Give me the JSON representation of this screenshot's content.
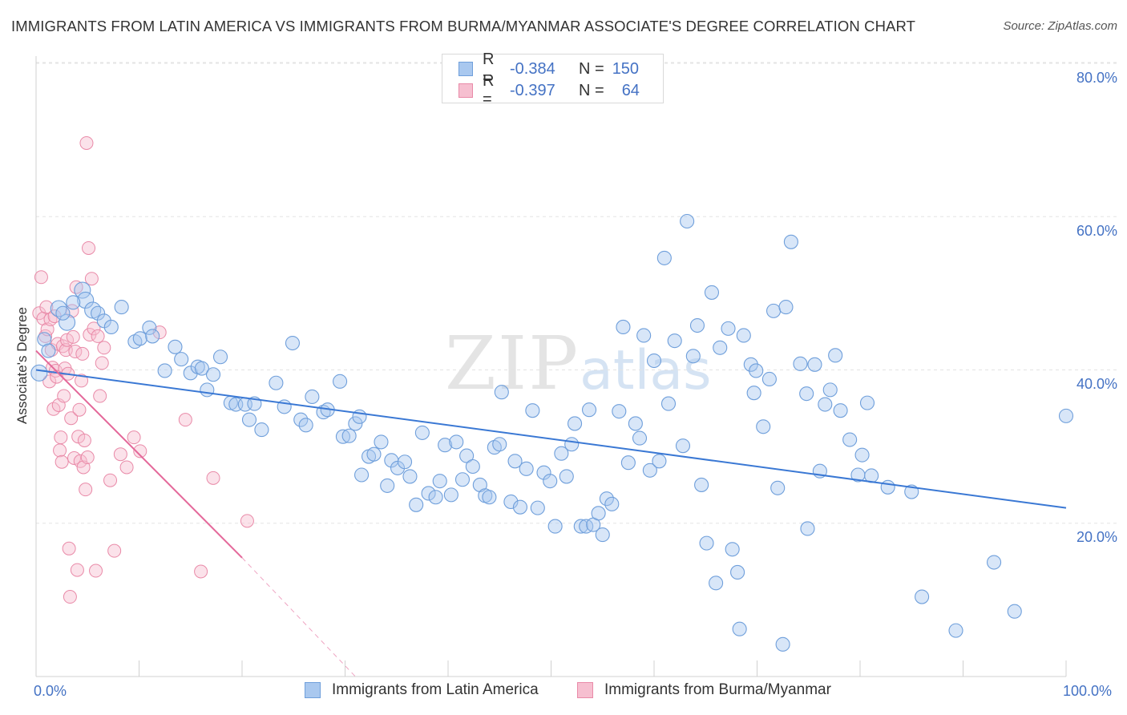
{
  "title": "IMMIGRANTS FROM LATIN AMERICA VS IMMIGRANTS FROM BURMA/MYANMAR ASSOCIATE'S DEGREE CORRELATION CHART",
  "source": "Source: ZipAtlas.com",
  "watermark": {
    "zip": "ZIP",
    "atlas": "atlas"
  },
  "legend": {
    "rows": [
      {
        "r_label": "R =",
        "r_value": "-0.384",
        "n_label": "N =",
        "n_value": "150"
      },
      {
        "r_label": "R =",
        "r_value": "-0.397",
        "n_label": "N =",
        "n_value": "64"
      }
    ]
  },
  "bottom_legend": {
    "series1": "Immigrants from Latin America",
    "series2": "Immigrants from Burma/Myanmar"
  },
  "axes": {
    "ylabel": "Associate's Degree",
    "x_min_label": "0.0%",
    "x_max_label": "100.0%",
    "y_ticks": [
      "20.0%",
      "40.0%",
      "60.0%",
      "80.0%"
    ]
  },
  "colors": {
    "blue_fill": "#a9c8ef",
    "blue_stroke": "#6f9fdb",
    "blue_line": "#3a78d4",
    "pink_fill": "#f6bfd0",
    "pink_stroke": "#e98aa8",
    "pink_line": "#e4689a",
    "grid": "#e3e3e3",
    "tick_text": "#4472c4"
  },
  "chart_data": {
    "type": "scatter",
    "title": "IMMIGRANTS FROM LATIN AMERICA VS IMMIGRANTS FROM BURMA/MYANMAR ASSOCIATE'S DEGREE CORRELATION CHART",
    "xlabel": "",
    "ylabel": "Associate's Degree",
    "xlim": [
      0,
      100
    ],
    "ylim": [
      0,
      82
    ],
    "y_ticks": [
      20,
      40,
      60,
      80
    ],
    "grid": true,
    "legend_placement": "top-center",
    "series": [
      {
        "name": "Immigrants from Latin America",
        "r": -0.384,
        "n": 150,
        "trend": {
          "x": [
            0,
            100
          ],
          "y": [
            40.0,
            22.0
          ]
        },
        "points": [
          [
            0.3,
            39.6
          ],
          [
            2.2,
            48.0
          ],
          [
            4.5,
            50.4
          ],
          [
            3.0,
            46.2
          ],
          [
            4.8,
            49.1
          ],
          [
            5.5,
            47.8
          ],
          [
            6.0,
            47.4
          ],
          [
            6.6,
            46.4
          ],
          [
            7.3,
            45.6
          ],
          [
            8.3,
            48.2
          ],
          [
            9.6,
            43.7
          ],
          [
            10.1,
            44.1
          ],
          [
            11.0,
            45.5
          ],
          [
            11.3,
            44.4
          ],
          [
            12.5,
            39.9
          ],
          [
            13.5,
            43.0
          ],
          [
            14.1,
            41.4
          ],
          [
            15.0,
            39.6
          ],
          [
            15.7,
            40.4
          ],
          [
            16.1,
            40.2
          ],
          [
            16.6,
            37.4
          ],
          [
            17.2,
            39.4
          ],
          [
            17.9,
            41.7
          ],
          [
            18.9,
            35.7
          ],
          [
            19.4,
            35.5
          ],
          [
            20.3,
            35.5
          ],
          [
            20.7,
            33.5
          ],
          [
            21.2,
            35.6
          ],
          [
            21.9,
            32.2
          ],
          [
            23.3,
            38.3
          ],
          [
            24.1,
            35.2
          ],
          [
            24.9,
            43.5
          ],
          [
            25.7,
            33.5
          ],
          [
            26.2,
            32.8
          ],
          [
            26.8,
            36.5
          ],
          [
            27.9,
            34.5
          ],
          [
            28.3,
            34.8
          ],
          [
            29.5,
            38.5
          ],
          [
            29.8,
            31.3
          ],
          [
            30.4,
            31.4
          ],
          [
            31.0,
            33.0
          ],
          [
            31.4,
            33.9
          ],
          [
            31.6,
            26.3
          ],
          [
            32.3,
            28.7
          ],
          [
            32.8,
            29.0
          ],
          [
            33.5,
            30.6
          ],
          [
            34.1,
            24.9
          ],
          [
            34.5,
            28.2
          ],
          [
            35.1,
            27.2
          ],
          [
            35.8,
            28.0
          ],
          [
            36.3,
            26.1
          ],
          [
            36.9,
            22.4
          ],
          [
            37.5,
            31.8
          ],
          [
            38.1,
            23.9
          ],
          [
            38.8,
            23.4
          ],
          [
            39.2,
            25.5
          ],
          [
            39.7,
            30.2
          ],
          [
            40.3,
            23.7
          ],
          [
            40.8,
            30.6
          ],
          [
            41.4,
            25.7
          ],
          [
            41.8,
            28.8
          ],
          [
            42.4,
            27.4
          ],
          [
            43.1,
            25.0
          ],
          [
            43.6,
            23.6
          ],
          [
            44.0,
            23.4
          ],
          [
            44.5,
            29.9
          ],
          [
            45.0,
            30.3
          ],
          [
            45.2,
            37.1
          ],
          [
            46.1,
            22.8
          ],
          [
            46.5,
            28.1
          ],
          [
            47.0,
            22.1
          ],
          [
            47.6,
            27.1
          ],
          [
            48.2,
            34.7
          ],
          [
            48.7,
            22.0
          ],
          [
            49.3,
            26.6
          ],
          [
            49.9,
            25.5
          ],
          [
            50.4,
            19.6
          ],
          [
            51.0,
            29.1
          ],
          [
            51.5,
            26.1
          ],
          [
            52.0,
            30.3
          ],
          [
            52.3,
            33.0
          ],
          [
            52.9,
            19.6
          ],
          [
            53.4,
            19.6
          ],
          [
            53.7,
            34.8
          ],
          [
            54.1,
            19.8
          ],
          [
            54.6,
            21.3
          ],
          [
            55.0,
            18.5
          ],
          [
            55.4,
            23.2
          ],
          [
            55.9,
            22.5
          ],
          [
            56.6,
            34.6
          ],
          [
            57.0,
            45.6
          ],
          [
            57.5,
            27.9
          ],
          [
            58.2,
            33.0
          ],
          [
            58.6,
            31.1
          ],
          [
            59.0,
            44.5
          ],
          [
            59.6,
            26.9
          ],
          [
            60.0,
            41.2
          ],
          [
            60.5,
            28.1
          ],
          [
            61.0,
            54.6
          ],
          [
            61.4,
            35.6
          ],
          [
            62.0,
            43.8
          ],
          [
            62.8,
            30.1
          ],
          [
            63.2,
            59.4
          ],
          [
            63.8,
            41.8
          ],
          [
            64.2,
            45.8
          ],
          [
            64.6,
            25.0
          ],
          [
            65.1,
            17.4
          ],
          [
            65.6,
            50.1
          ],
          [
            66.0,
            12.2
          ],
          [
            66.4,
            42.9
          ],
          [
            67.2,
            45.4
          ],
          [
            67.6,
            16.6
          ],
          [
            68.1,
            13.6
          ],
          [
            68.3,
            6.2
          ],
          [
            68.7,
            44.5
          ],
          [
            69.4,
            40.7
          ],
          [
            69.7,
            37.0
          ],
          [
            69.9,
            39.9
          ],
          [
            70.6,
            32.6
          ],
          [
            71.2,
            38.8
          ],
          [
            71.6,
            47.7
          ],
          [
            72.0,
            24.6
          ],
          [
            72.5,
            4.2
          ],
          [
            72.8,
            48.2
          ],
          [
            73.3,
            56.7
          ],
          [
            74.2,
            40.8
          ],
          [
            74.8,
            36.9
          ],
          [
            74.9,
            19.3
          ],
          [
            75.6,
            40.7
          ],
          [
            76.1,
            26.8
          ],
          [
            76.6,
            35.5
          ],
          [
            77.1,
            37.4
          ],
          [
            77.6,
            41.9
          ],
          [
            78.1,
            34.7
          ],
          [
            79.0,
            30.9
          ],
          [
            79.8,
            26.3
          ],
          [
            80.2,
            28.9
          ],
          [
            80.7,
            35.7
          ],
          [
            81.1,
            26.2
          ],
          [
            82.7,
            24.7
          ],
          [
            85.0,
            24.1
          ],
          [
            86.0,
            10.4
          ],
          [
            89.3,
            6.0
          ],
          [
            93.0,
            14.9
          ],
          [
            95.0,
            8.5
          ],
          [
            100.0,
            34.0
          ],
          [
            0.8,
            44.0
          ],
          [
            1.2,
            42.5
          ],
          [
            2.6,
            47.4
          ],
          [
            3.6,
            48.8
          ]
        ]
      },
      {
        "name": "Immigrants from Burma/Myanmar",
        "r": -0.397,
        "n": 64,
        "trend": {
          "x": [
            0,
            20
          ],
          "y": [
            42.5,
            15.5
          ]
        },
        "trend_extension": {
          "x": [
            20,
            31
          ],
          "y": [
            15.5,
            0
          ]
        },
        "points": [
          [
            0.3,
            47.4
          ],
          [
            0.5,
            52.1
          ],
          [
            0.7,
            46.7
          ],
          [
            0.9,
            44.4
          ],
          [
            1.0,
            48.2
          ],
          [
            1.1,
            45.3
          ],
          [
            1.3,
            38.5
          ],
          [
            1.4,
            46.6
          ],
          [
            1.5,
            42.6
          ],
          [
            1.6,
            40.3
          ],
          [
            1.7,
            34.9
          ],
          [
            1.8,
            47.0
          ],
          [
            1.9,
            39.9
          ],
          [
            2.0,
            39.1
          ],
          [
            2.1,
            43.4
          ],
          [
            2.2,
            35.4
          ],
          [
            2.3,
            29.5
          ],
          [
            2.4,
            31.2
          ],
          [
            2.5,
            28.0
          ],
          [
            2.6,
            43.1
          ],
          [
            2.7,
            36.6
          ],
          [
            2.8,
            40.2
          ],
          [
            2.9,
            42.6
          ],
          [
            3.0,
            43.9
          ],
          [
            3.1,
            39.5
          ],
          [
            3.2,
            16.7
          ],
          [
            3.3,
            10.4
          ],
          [
            3.4,
            33.7
          ],
          [
            3.5,
            47.7
          ],
          [
            3.6,
            44.3
          ],
          [
            3.7,
            28.5
          ],
          [
            3.8,
            42.4
          ],
          [
            3.9,
            50.8
          ],
          [
            4.0,
            13.9
          ],
          [
            4.1,
            31.3
          ],
          [
            4.2,
            34.8
          ],
          [
            4.3,
            28.1
          ],
          [
            4.4,
            38.6
          ],
          [
            4.5,
            42.1
          ],
          [
            4.6,
            27.3
          ],
          [
            4.7,
            30.8
          ],
          [
            4.8,
            24.4
          ],
          [
            4.9,
            69.6
          ],
          [
            5.0,
            28.6
          ],
          [
            5.1,
            55.9
          ],
          [
            5.2,
            44.6
          ],
          [
            5.4,
            51.9
          ],
          [
            5.6,
            45.4
          ],
          [
            5.8,
            13.8
          ],
          [
            6.0,
            44.4
          ],
          [
            6.2,
            36.6
          ],
          [
            6.4,
            40.9
          ],
          [
            6.6,
            42.9
          ],
          [
            7.2,
            25.6
          ],
          [
            7.6,
            16.4
          ],
          [
            8.2,
            29.0
          ],
          [
            8.8,
            27.3
          ],
          [
            9.5,
            31.2
          ],
          [
            10.1,
            29.4
          ],
          [
            12.0,
            44.9
          ],
          [
            14.5,
            33.5
          ],
          [
            16.0,
            13.7
          ],
          [
            17.2,
            25.9
          ],
          [
            20.5,
            20.3
          ]
        ]
      }
    ]
  }
}
